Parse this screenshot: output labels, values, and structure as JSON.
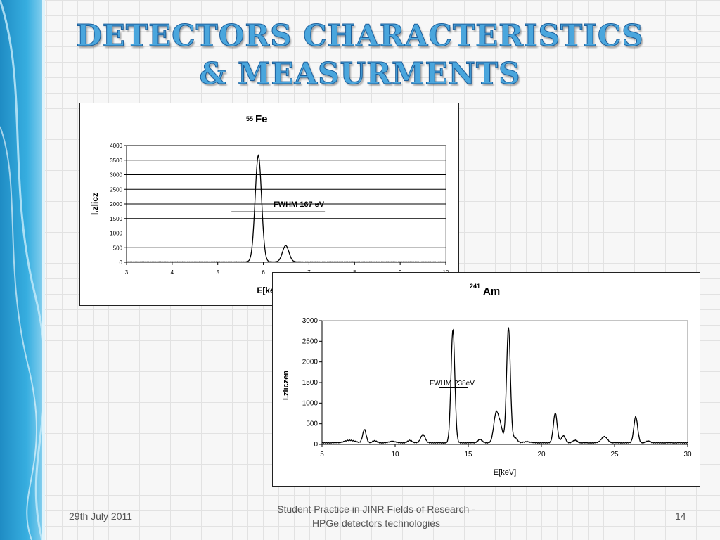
{
  "slide": {
    "title_line1": "DETECTORS CHARACTERISTICS",
    "title_line2": "& MEASURMENTS",
    "footer_date": "29th July 2011",
    "footer_center_line1": "Student Practice in JINR Fields of Research -",
    "footer_center_line2": "HPGe detectors technologies",
    "page_number": "14",
    "colors": {
      "title": "#4aa6dd",
      "title_outline": "#1c5f9c",
      "side_band": "#2f9fd3"
    }
  },
  "chart_data": [
    {
      "type": "line",
      "title_mass": "55",
      "title_element": "Fe",
      "xlabel": "E[keV]",
      "ylabel": "l.zlicz",
      "xlim": [
        3,
        10
      ],
      "ylim": [
        0,
        4000
      ],
      "xticks": [
        "3",
        "4",
        "5",
        "6",
        "7",
        "8",
        "9",
        "10"
      ],
      "yticks": [
        "0",
        "500",
        "1000",
        "1500",
        "2000",
        "2500",
        "3000",
        "3500",
        "4000"
      ],
      "grid": "horizontal",
      "annotation": "FWHM 167 eV",
      "fwhm_marker": {
        "x_from": 5.3,
        "x_to": 7.35,
        "y": 1730
      },
      "peaks": [
        {
          "x": 5.89,
          "y": 3650,
          "width": 0.07
        },
        {
          "x": 6.49,
          "y": 560,
          "width": 0.07
        }
      ],
      "baseline": 10
    },
    {
      "type": "line",
      "title_mass": "241",
      "title_element": "Am",
      "xlabel": "E[keV]",
      "ylabel": "l.zliczen",
      "xlim": [
        5,
        30
      ],
      "ylim": [
        0,
        3000
      ],
      "xticks": [
        "5",
        "10",
        "15",
        "20",
        "25",
        "30"
      ],
      "yticks": [
        "0",
        "500",
        "1000",
        "1500",
        "2000",
        "2500",
        "3000"
      ],
      "grid": "none",
      "annotation_left": "FWHM",
      "annotation_right": "238eV",
      "fwhm_marker": {
        "x_from": 13.0,
        "x_to": 15.0,
        "y": 1380
      },
      "peaks": [
        {
          "x": 6.9,
          "y": 60,
          "width": 0.35
        },
        {
          "x": 7.9,
          "y": 320,
          "width": 0.12
        },
        {
          "x": 8.6,
          "y": 50,
          "width": 0.15
        },
        {
          "x": 9.8,
          "y": 40,
          "width": 0.2
        },
        {
          "x": 11.0,
          "y": 60,
          "width": 0.15
        },
        {
          "x": 11.9,
          "y": 200,
          "width": 0.15
        },
        {
          "x": 13.95,
          "y": 2750,
          "width": 0.13
        },
        {
          "x": 15.8,
          "y": 80,
          "width": 0.15
        },
        {
          "x": 16.9,
          "y": 700,
          "width": 0.16
        },
        {
          "x": 17.2,
          "y": 380,
          "width": 0.15
        },
        {
          "x": 17.75,
          "y": 2800,
          "width": 0.13
        },
        {
          "x": 18.2,
          "y": 120,
          "width": 0.15
        },
        {
          "x": 19.0,
          "y": 30,
          "width": 0.2
        },
        {
          "x": 20.95,
          "y": 720,
          "width": 0.13
        },
        {
          "x": 21.5,
          "y": 170,
          "width": 0.14
        },
        {
          "x": 22.3,
          "y": 60,
          "width": 0.15
        },
        {
          "x": 24.3,
          "y": 150,
          "width": 0.2
        },
        {
          "x": 26.45,
          "y": 630,
          "width": 0.13
        },
        {
          "x": 27.3,
          "y": 40,
          "width": 0.15
        }
      ],
      "baseline": 30
    }
  ]
}
